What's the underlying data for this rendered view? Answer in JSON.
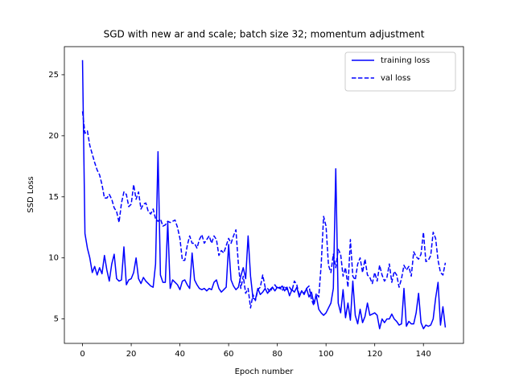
{
  "chart_data": {
    "type": "line",
    "title": "SGD with new ar and scale; batch size 32; momentum adjustment",
    "xlabel": "Epoch number",
    "ylabel": "SSD Loss",
    "x": [
      0,
      1,
      2,
      3,
      4,
      5,
      6,
      7,
      8,
      9,
      10,
      11,
      12,
      13,
      14,
      15,
      16,
      17,
      18,
      19,
      20,
      21,
      22,
      23,
      24,
      25,
      26,
      27,
      28,
      29,
      30,
      31,
      32,
      33,
      34,
      35,
      36,
      37,
      38,
      39,
      40,
      41,
      42,
      43,
      44,
      45,
      46,
      47,
      48,
      49,
      50,
      51,
      52,
      53,
      54,
      55,
      56,
      57,
      58,
      59,
      60,
      61,
      62,
      63,
      64,
      65,
      66,
      67,
      68,
      69,
      70,
      71,
      72,
      73,
      74,
      75,
      76,
      77,
      78,
      79,
      80,
      81,
      82,
      83,
      84,
      85,
      86,
      87,
      88,
      89,
      90,
      91,
      92,
      93,
      94,
      95,
      96,
      97,
      98,
      99,
      100,
      101,
      102,
      103,
      104,
      105,
      106,
      107,
      108,
      109,
      110,
      111,
      112,
      113,
      114,
      115,
      116,
      117,
      118,
      119,
      120,
      121,
      122,
      123,
      124,
      125,
      126,
      127,
      128,
      129,
      130,
      131,
      132,
      133,
      134,
      135,
      136,
      137,
      138,
      139,
      140,
      141,
      142,
      143,
      144,
      145,
      146,
      147,
      148,
      149
    ],
    "series": [
      {
        "name": "training loss",
        "color": "#0000ff",
        "dash": "solid",
        "values": [
          26.2,
          12,
          10.8,
          10,
          8.8,
          9.3,
          8.6,
          9.2,
          8.7,
          10.2,
          9,
          8.1,
          9.5,
          10.3,
          8.3,
          8.1,
          8.2,
          10.9,
          7.8,
          8.2,
          8.3,
          8.8,
          10,
          8.3,
          7.9,
          8.4,
          8.1,
          7.9,
          7.7,
          7.6,
          9.5,
          18.7,
          8.6,
          8,
          8,
          12.9,
          7.5,
          8.2,
          8,
          7.8,
          7.4,
          8.1,
          8.2,
          7.8,
          7.5,
          10.4,
          8.2,
          7.8,
          7.5,
          7.4,
          7.5,
          7.3,
          7.5,
          7.4,
          8,
          8.2,
          7.5,
          7.2,
          7.4,
          7.6,
          11.1,
          8.2,
          7.7,
          7.4,
          7.6,
          8.5,
          9.2,
          8.3,
          11.8,
          8.5,
          6.7,
          6.6,
          7.5,
          7,
          7.2,
          7.5,
          7.1,
          7.4,
          7.6,
          7.3,
          7.6,
          7.5,
          7.7,
          7.3,
          7.6,
          6.9,
          7.4,
          7.2,
          7.6,
          6.8,
          7.3,
          7,
          7.5,
          6.8,
          7.2,
          6.3,
          6.9,
          5.8,
          5.5,
          5.3,
          5.5,
          5.9,
          6.3,
          7.5,
          17.3,
          6.3,
          5.5,
          7.4,
          5.1,
          6.3,
          4.9,
          8.1,
          5.3,
          4.6,
          5.8,
          4.7,
          5.2,
          6.3,
          5.3,
          5.4,
          5.5,
          5.3,
          4.2,
          5,
          4.7,
          5,
          5,
          5.4,
          5,
          4.8,
          4.5,
          4.6,
          7.5,
          4.4,
          4.8,
          4.6,
          4.6,
          5.5,
          7.1,
          4.7,
          4.2,
          4.5,
          4.4,
          4.5,
          5,
          6.7,
          8,
          4.5,
          6,
          4.3
        ]
      },
      {
        "name": "val loss",
        "color": "#0000ff",
        "dash": "dashed",
        "values": [
          22,
          20.2,
          20.4,
          19.2,
          18.5,
          17.8,
          17.2,
          16.8,
          16,
          14.9,
          14.9,
          15.2,
          14.8,
          14.1,
          13.8,
          12.9,
          14.5,
          15.4,
          15.2,
          14.2,
          14.4,
          16,
          14.8,
          15.4,
          14,
          14.4,
          14.5,
          13.8,
          13.6,
          14,
          13.2,
          13,
          13.2,
          12.6,
          12.7,
          13,
          12.9,
          13,
          13.1,
          12.5,
          11.6,
          9.8,
          9.8,
          11,
          11.8,
          11.2,
          11.2,
          10.8,
          11.5,
          11.9,
          11.2,
          11.5,
          11.8,
          11.2,
          11.8,
          11.5,
          10.2,
          10.6,
          10.4,
          11,
          11.6,
          11.2,
          11.8,
          12.3,
          9.5,
          7.5,
          8.5,
          7.1,
          7.5,
          5.9,
          7,
          6.5,
          7.4,
          7.6,
          8.6,
          7.6,
          7.5,
          7.2,
          7.6,
          7.8,
          7.5,
          7.6,
          7.3,
          7.7,
          7.4,
          7.6,
          7.3,
          8.1,
          7.8,
          6.9,
          7.3,
          7.1,
          7.5,
          7.7,
          6.6,
          6.1,
          7.1,
          6.8,
          9.4,
          13.4,
          12.6,
          9.4,
          8.8,
          10.3,
          9.2,
          10.7,
          10.3,
          8.5,
          9.2,
          7.6,
          11.5,
          8.5,
          8.2,
          9.5,
          10,
          8.8,
          9.9,
          8.6,
          8.4,
          7.9,
          8.8,
          8.1,
          9.4,
          8.6,
          8.1,
          8.4,
          9.5,
          8,
          8.9,
          8.6,
          7.6,
          8.3,
          9.4,
          9,
          9.3,
          8.5,
          10.5,
          10.1,
          9.9,
          10.3,
          12.1,
          9.7,
          9.8,
          10.2,
          12.1,
          11.6,
          9.8,
          8.8,
          8.6,
          9.6
        ]
      }
    ],
    "xlim": [
      -7.45,
      156.45
    ],
    "ylim": [
      3.0,
      27.3
    ],
    "xticks": [
      0,
      20,
      40,
      60,
      80,
      100,
      120,
      140
    ],
    "yticks": [
      5,
      10,
      15,
      20,
      25
    ],
    "legend": "upper right"
  }
}
